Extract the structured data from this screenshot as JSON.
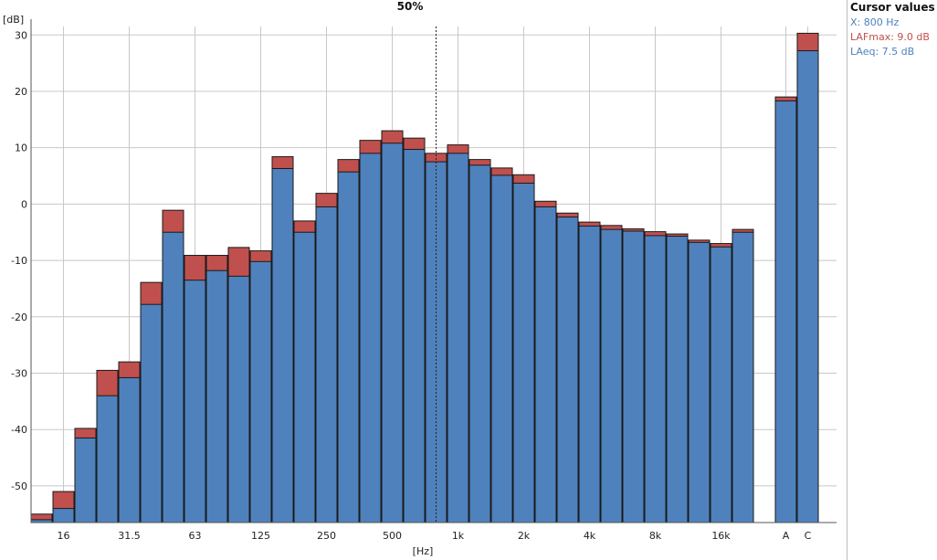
{
  "chart_data": {
    "type": "bar",
    "title": "50%",
    "ylabel": "[dB]",
    "xlabel": "[Hz]",
    "ylim": [
      -56.5,
      31.5
    ],
    "yticks": [
      -50,
      -40,
      -30,
      -20,
      -10,
      0,
      10,
      20,
      30
    ],
    "grid": true,
    "categories": [
      "12.5",
      "16",
      "20",
      "25",
      "31.5",
      "40",
      "50",
      "63",
      "80",
      "100",
      "125",
      "160",
      "200",
      "250",
      "315",
      "400",
      "500",
      "630",
      "800",
      "1k",
      "1.25k",
      "1.6k",
      "2k",
      "2.5k",
      "3.15k",
      "4k",
      "5k",
      "6.3k",
      "8k",
      "10k",
      "12.5k",
      "16k",
      "20k",
      "A",
      "C"
    ],
    "x_tick_labels": [
      "16",
      "31.5",
      "63",
      "125",
      "250",
      "500",
      "1k",
      "2k",
      "4k",
      "8k",
      "16k",
      "A",
      "C"
    ],
    "series": [
      {
        "name": "LAeq",
        "color": "#4f81bd",
        "values": [
          -56.0,
          -54.0,
          -41.5,
          -34.0,
          -30.8,
          -17.8,
          -5.0,
          -13.5,
          -11.8,
          -12.8,
          -10.2,
          6.3,
          -5.0,
          -0.5,
          5.7,
          9.0,
          10.8,
          9.7,
          7.5,
          9.0,
          6.9,
          5.1,
          3.7,
          -0.5,
          -2.3,
          -3.9,
          -4.5,
          -4.8,
          -5.6,
          -5.7,
          -6.8,
          -7.6,
          -5.0,
          18.3,
          27.2
        ]
      },
      {
        "name": "LAFmax",
        "color": "#c0504d",
        "values": [
          -55.0,
          -51.0,
          -39.8,
          -29.5,
          -28.0,
          -13.9,
          -1.1,
          -9.1,
          -9.1,
          -7.7,
          -8.3,
          8.4,
          -3.0,
          1.9,
          7.9,
          11.3,
          13.0,
          11.7,
          9.0,
          10.5,
          7.9,
          6.4,
          5.2,
          0.5,
          -1.6,
          -3.2,
          -3.8,
          -4.4,
          -4.9,
          -5.3,
          -6.4,
          -7.0,
          -4.5,
          19.0,
          30.3
        ]
      }
    ],
    "cursor": {
      "category": "800",
      "position_fraction": 0.5
    }
  },
  "cursor_panel": {
    "heading": "Cursor values",
    "x_line": "X: 800 Hz",
    "max_line": "LAFmax: 9.0 dB",
    "eq_line": "LAeq: 7.5 dB",
    "x_color": "#4f81bd",
    "max_color": "#c0504d",
    "eq_color": "#4f81bd"
  }
}
